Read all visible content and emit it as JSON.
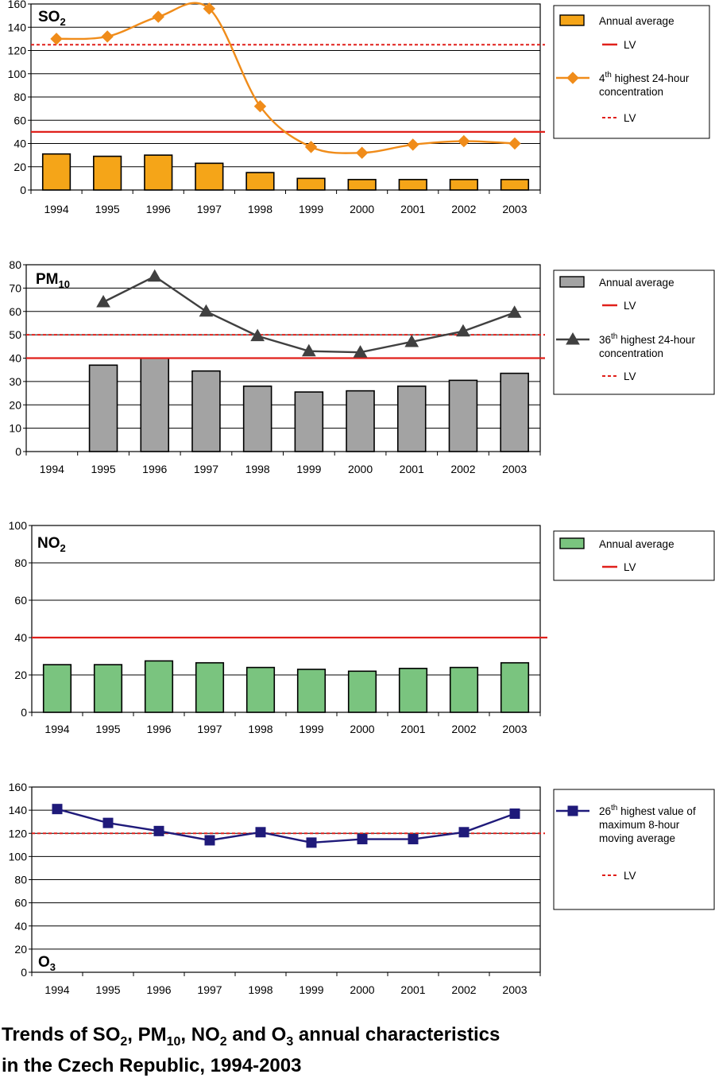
{
  "chart_data": [
    {
      "type": "bar",
      "title": "SO2",
      "title_main": "SO",
      "title_sub": "2",
      "categories": [
        "1994",
        "1995",
        "1996",
        "1997",
        "1998",
        "1999",
        "2000",
        "2001",
        "2002",
        "2003"
      ],
      "ylim": [
        0,
        160
      ],
      "yticks": [
        0,
        20,
        40,
        60,
        80,
        100,
        120,
        140,
        160
      ],
      "grid": true,
      "bar_color": "#f5a518",
      "line_color": "#f08c1a",
      "series": [
        {
          "name": "Annual average",
          "kind": "bar",
          "values": [
            31,
            29,
            30,
            23,
            15,
            10,
            9,
            9,
            9,
            9
          ]
        },
        {
          "name": "4th highest 24-hour concentration",
          "kind": "line",
          "marker": "diamond",
          "values": [
            130,
            132,
            149,
            156,
            72,
            37,
            32,
            39,
            42,
            40
          ]
        }
      ],
      "reference_lines": [
        {
          "name": "LV",
          "value": 50,
          "style": "solid",
          "color": "#e0201b"
        },
        {
          "name": "LV",
          "value": 125,
          "style": "dashed",
          "color": "#e0201b"
        }
      ],
      "legend": {
        "position": "right",
        "items": [
          {
            "kind": "bar",
            "label": "Annual average"
          },
          {
            "kind": "solid",
            "label": "LV"
          },
          {
            "kind": "line",
            "label_parts": [
              "4",
              "th",
              " highest 24-hour"
            ],
            "label2": "concentration"
          },
          {
            "kind": "dashed",
            "label": "LV"
          }
        ]
      }
    },
    {
      "type": "bar",
      "title": "PM10",
      "title_main": "PM",
      "title_sub": "10",
      "categories": [
        "1994",
        "1995",
        "1996",
        "1997",
        "1998",
        "1999",
        "2000",
        "2001",
        "2002",
        "2003"
      ],
      "ylim": [
        0,
        80
      ],
      "yticks": [
        0,
        10,
        20,
        30,
        40,
        50,
        60,
        70,
        80
      ],
      "grid": true,
      "bar_color": "#a3a3a3",
      "line_color": "#404040",
      "series": [
        {
          "name": "Annual average",
          "kind": "bar",
          "values": [
            null,
            37,
            40,
            34.5,
            28,
            25.5,
            26,
            28,
            30.5,
            33.5
          ]
        },
        {
          "name": "36th highest 24-hour concentration",
          "kind": "line",
          "marker": "triangle",
          "values": [
            null,
            64,
            75,
            60,
            49.5,
            43,
            42.5,
            47,
            51.5,
            59.5
          ]
        }
      ],
      "reference_lines": [
        {
          "name": "LV",
          "value": 40,
          "style": "solid",
          "color": "#e0201b"
        },
        {
          "name": "LV",
          "value": 50,
          "style": "dashed",
          "color": "#e0201b"
        }
      ],
      "legend": {
        "position": "right",
        "items": [
          {
            "kind": "bar",
            "label": "Annual average"
          },
          {
            "kind": "solid",
            "label": "LV"
          },
          {
            "kind": "line",
            "label_parts": [
              "36",
              "th",
              " highest 24-hour"
            ],
            "label2": "concentration"
          },
          {
            "kind": "dashed",
            "label": "LV"
          }
        ]
      }
    },
    {
      "type": "bar",
      "title": "NO2",
      "title_main": "NO",
      "title_sub": "2",
      "categories": [
        "1994",
        "1995",
        "1996",
        "1997",
        "1998",
        "1999",
        "2000",
        "2001",
        "2002",
        "2003"
      ],
      "ylim": [
        0,
        100
      ],
      "yticks": [
        0,
        20,
        40,
        60,
        80,
        100
      ],
      "grid": true,
      "bar_color": "#7ac47f",
      "series": [
        {
          "name": "Annual average",
          "kind": "bar",
          "values": [
            25.5,
            25.5,
            27.5,
            26.5,
            24,
            23,
            22,
            23.5,
            24,
            26.5
          ]
        }
      ],
      "reference_lines": [
        {
          "name": "LV",
          "value": 40,
          "style": "solid",
          "color": "#e0201b"
        }
      ],
      "legend": {
        "position": "right",
        "items": [
          {
            "kind": "bar",
            "label": "Annual average"
          },
          {
            "kind": "solid",
            "label": "LV"
          }
        ]
      }
    },
    {
      "type": "line",
      "title": "O3",
      "title_main": "O",
      "title_sub": "3",
      "categories": [
        "1994",
        "1995",
        "1996",
        "1997",
        "1998",
        "1999",
        "2000",
        "2001",
        "2002",
        "2003"
      ],
      "ylim": [
        0,
        160
      ],
      "yticks": [
        0,
        20,
        40,
        60,
        80,
        100,
        120,
        140,
        160
      ],
      "grid": true,
      "line_color": "#1f1a7a",
      "series": [
        {
          "name": "26th highest value of maximum 8-hour moving average",
          "kind": "line",
          "marker": "square",
          "values": [
            141,
            129,
            122,
            114,
            121,
            112,
            115,
            115,
            121,
            137
          ]
        }
      ],
      "reference_lines": [
        {
          "name": "LV",
          "value": 120,
          "style": "dashed",
          "color": "#e0201b"
        }
      ],
      "legend": {
        "position": "right",
        "items": [
          {
            "kind": "line",
            "label_parts": [
              "26",
              "th",
              " highest value of"
            ],
            "label2": "maximum 8-hour",
            "label3": "moving average"
          },
          {
            "kind": "dashed",
            "label": "LV"
          }
        ]
      }
    }
  ],
  "caption": {
    "line1_parts": [
      "Trends of SO",
      "2",
      ", PM",
      "10",
      ", NO",
      "2",
      " and O",
      "3",
      " annual characteristics"
    ],
    "line2": "in the Czech Republic, 1994-2003"
  }
}
